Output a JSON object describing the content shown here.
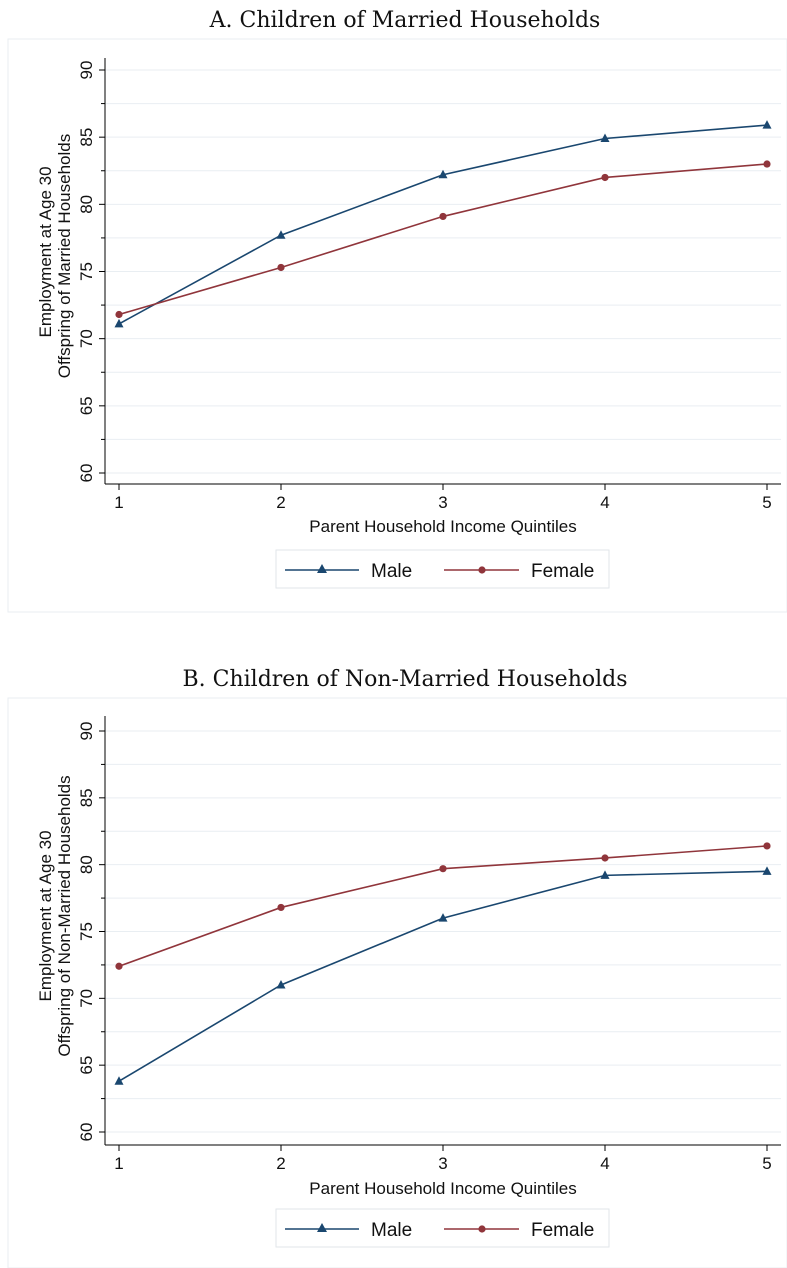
{
  "chart_data": [
    {
      "type": "line",
      "title": "A. Children of Married Households",
      "xlabel": "Parent Household Income Quintiles",
      "ylabel_line1": "Employment at Age 30",
      "ylabel_line2": "Offspring of Married Households",
      "x": [
        1,
        2,
        3,
        4,
        5
      ],
      "xlim": [
        1,
        5
      ],
      "ylim": [
        60,
        90
      ],
      "yticks": [
        60,
        65,
        70,
        75,
        80,
        85,
        90
      ],
      "grid": true,
      "legend_position": "bottom",
      "series": [
        {
          "name": "Male",
          "marker": "triangle",
          "color": "#1a476f",
          "values": [
            71.1,
            77.7,
            82.2,
            84.9,
            85.9
          ]
        },
        {
          "name": "Female",
          "marker": "circle",
          "color": "#90353b",
          "values": [
            71.8,
            75.3,
            79.1,
            82.0,
            83.0
          ]
        }
      ]
    },
    {
      "type": "line",
      "title": "B. Children of Non-Married Households",
      "xlabel": "Parent Household Income Quintiles",
      "ylabel_line1": "Employment at Age 30",
      "ylabel_line2": "Offspring of Non-Married Households",
      "x": [
        1,
        2,
        3,
        4,
        5
      ],
      "xlim": [
        1,
        5
      ],
      "ylim": [
        60,
        90
      ],
      "yticks": [
        60,
        65,
        70,
        75,
        80,
        85,
        90
      ],
      "grid": true,
      "legend_position": "bottom",
      "series": [
        {
          "name": "Male",
          "marker": "triangle",
          "color": "#1a476f",
          "values": [
            63.8,
            71.0,
            76.0,
            79.2,
            79.5
          ]
        },
        {
          "name": "Female",
          "marker": "circle",
          "color": "#90353b",
          "values": [
            72.4,
            76.8,
            79.7,
            80.5,
            81.4
          ]
        }
      ]
    }
  ]
}
